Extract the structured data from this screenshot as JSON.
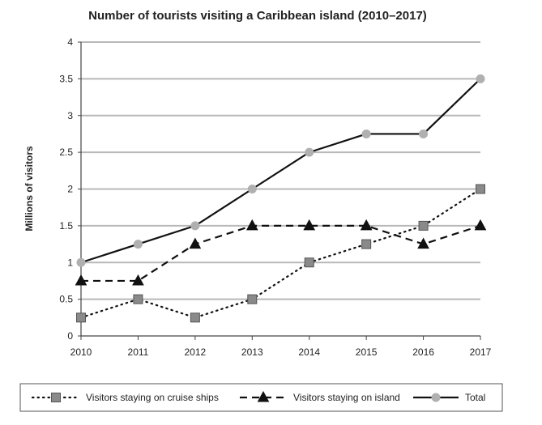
{
  "chart_data": {
    "type": "line",
    "title": "Number of tourists visiting a Caribbean island (2010–2017)",
    "xlabel": "",
    "ylabel": "Millions of visitors",
    "x": [
      "2010",
      "2011",
      "2012",
      "2013",
      "2014",
      "2015",
      "2016",
      "2017"
    ],
    "ylim": [
      0,
      4
    ],
    "yticks": [
      "0",
      "0.5",
      "1",
      "1.5",
      "2",
      "2.5",
      "3",
      "3.5",
      "4"
    ],
    "grid": "horizontal",
    "legend_position": "bottom",
    "series": [
      {
        "name": "Visitors staying on cruise ships",
        "marker": "square",
        "line": "dotted",
        "values": [
          0.25,
          0.5,
          0.25,
          0.5,
          1.0,
          1.25,
          1.5,
          2.0
        ]
      },
      {
        "name": "Visitors staying on island",
        "marker": "triangle",
        "line": "dashed",
        "values": [
          0.75,
          0.75,
          1.25,
          1.5,
          1.5,
          1.5,
          1.25,
          1.5
        ]
      },
      {
        "name": "Total",
        "marker": "circle",
        "line": "solid",
        "values": [
          1.0,
          1.25,
          1.5,
          2.0,
          2.5,
          2.75,
          2.75,
          3.5
        ]
      }
    ]
  }
}
